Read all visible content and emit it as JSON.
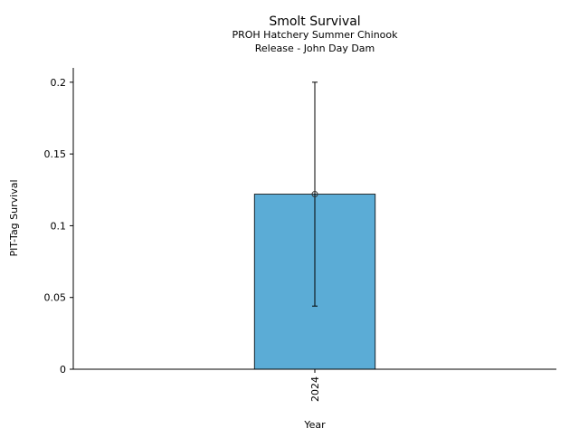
{
  "chart_data": {
    "type": "bar",
    "title": "Smolt Survival",
    "subtitle_lines": [
      "PROH Hatchery Summer Chinook",
      "Release - John Day Dam"
    ],
    "xlabel": "Year",
    "ylabel": "PIT-Tag Survival",
    "categories": [
      "2024"
    ],
    "values": [
      0.122
    ],
    "error_low": [
      0.044
    ],
    "error_high": [
      0.2
    ],
    "ylim": [
      0,
      0.21
    ],
    "yticks": [
      0,
      0.05,
      0.1,
      0.15,
      0.2
    ],
    "ytick_labels": [
      "0",
      "0.05",
      "0.1",
      "0.15",
      "0.2"
    ],
    "grid": false,
    "bar_color": "#5bacd6"
  }
}
